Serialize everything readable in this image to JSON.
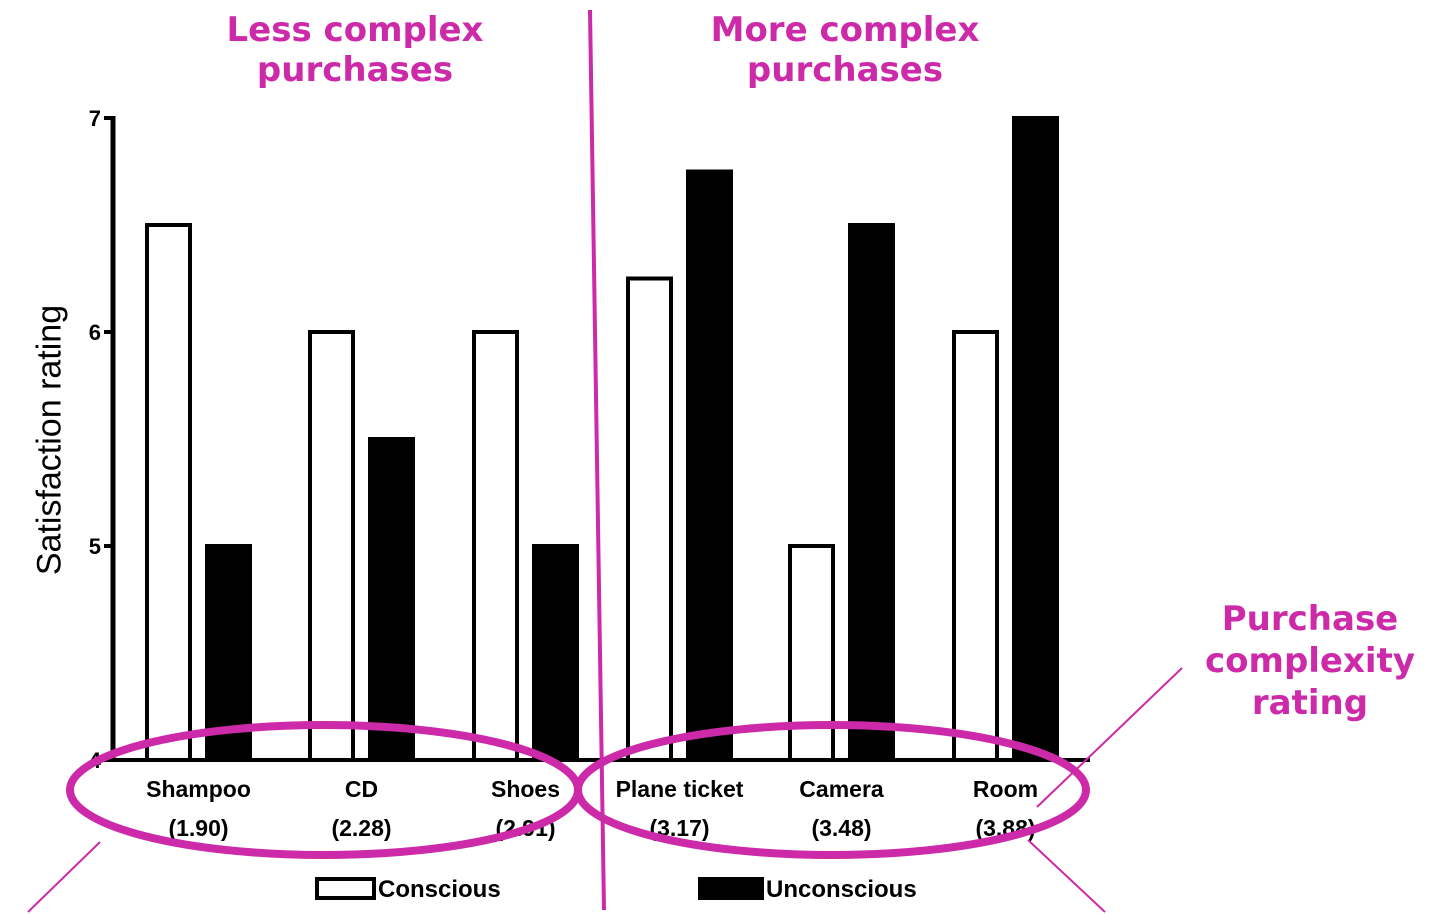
{
  "colors": {
    "accent": "#cc2aa8",
    "bar_conscious_fill": "#ffffff",
    "bar_unconscious_fill": "#000000",
    "axis": "#000000"
  },
  "headings": {
    "left": [
      "Less complex",
      "purchases"
    ],
    "right": [
      "More complex",
      "purchases"
    ]
  },
  "annotation": [
    "Purchase",
    "complexity",
    "rating"
  ],
  "chart_data": {
    "type": "bar",
    "categories": [
      "Shampoo",
      "CD",
      "Shoes",
      "Plane ticket",
      "Camera",
      "Room"
    ],
    "category_sublabels": [
      "(1.90)",
      "(2.28)",
      "(2.91)",
      "(3.17)",
      "(3.48)",
      "(3.88)"
    ],
    "series": [
      {
        "name": "Conscious",
        "values": [
          6.5,
          6.0,
          6.0,
          6.25,
          5.0,
          6.0
        ]
      },
      {
        "name": "Unconscious",
        "values": [
          5.0,
          5.5,
          5.0,
          6.75,
          6.5,
          7.0
        ]
      }
    ],
    "ylabel": "Satisfaction rating",
    "ylim": [
      4,
      7
    ],
    "yticks": [
      "4",
      "5",
      "6",
      "7"
    ],
    "legend_position": "bottom",
    "grid": false
  }
}
